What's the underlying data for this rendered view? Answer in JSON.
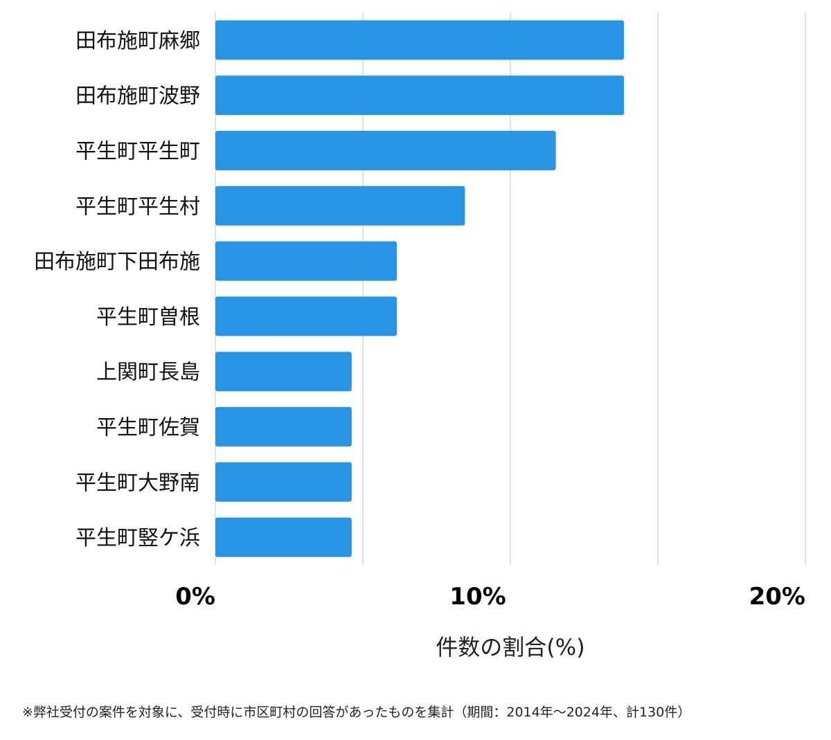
{
  "chart_data": {
    "type": "bar",
    "orientation": "horizontal",
    "categories": [
      "田布施町麻郷",
      "田布施町波野",
      "平生町平生町",
      "平生町平生村",
      "田布施町下田布施",
      "平生町曽根",
      "上関町長島",
      "平生町佐賀",
      "平生町大野南",
      "平生町竪ケ浜"
    ],
    "values": [
      13.85,
      13.85,
      11.54,
      8.46,
      6.15,
      6.15,
      4.62,
      4.62,
      4.62,
      4.62
    ],
    "xlim": [
      0,
      20
    ],
    "xticks": [
      0,
      10,
      20
    ],
    "xtick_labels": [
      "0%",
      "10%",
      "20%"
    ],
    "xlabel": "件数の割合(%)",
    "ylabel": "",
    "title": "",
    "grid": "vertical",
    "bar_color": "#2894e6",
    "gridline_color": "#d9d9d9"
  },
  "footnote": "※弊社受付の案件を対象に、受付時に市区町村の回答があったものを集計（期間：2014年～2024年、計130件）"
}
